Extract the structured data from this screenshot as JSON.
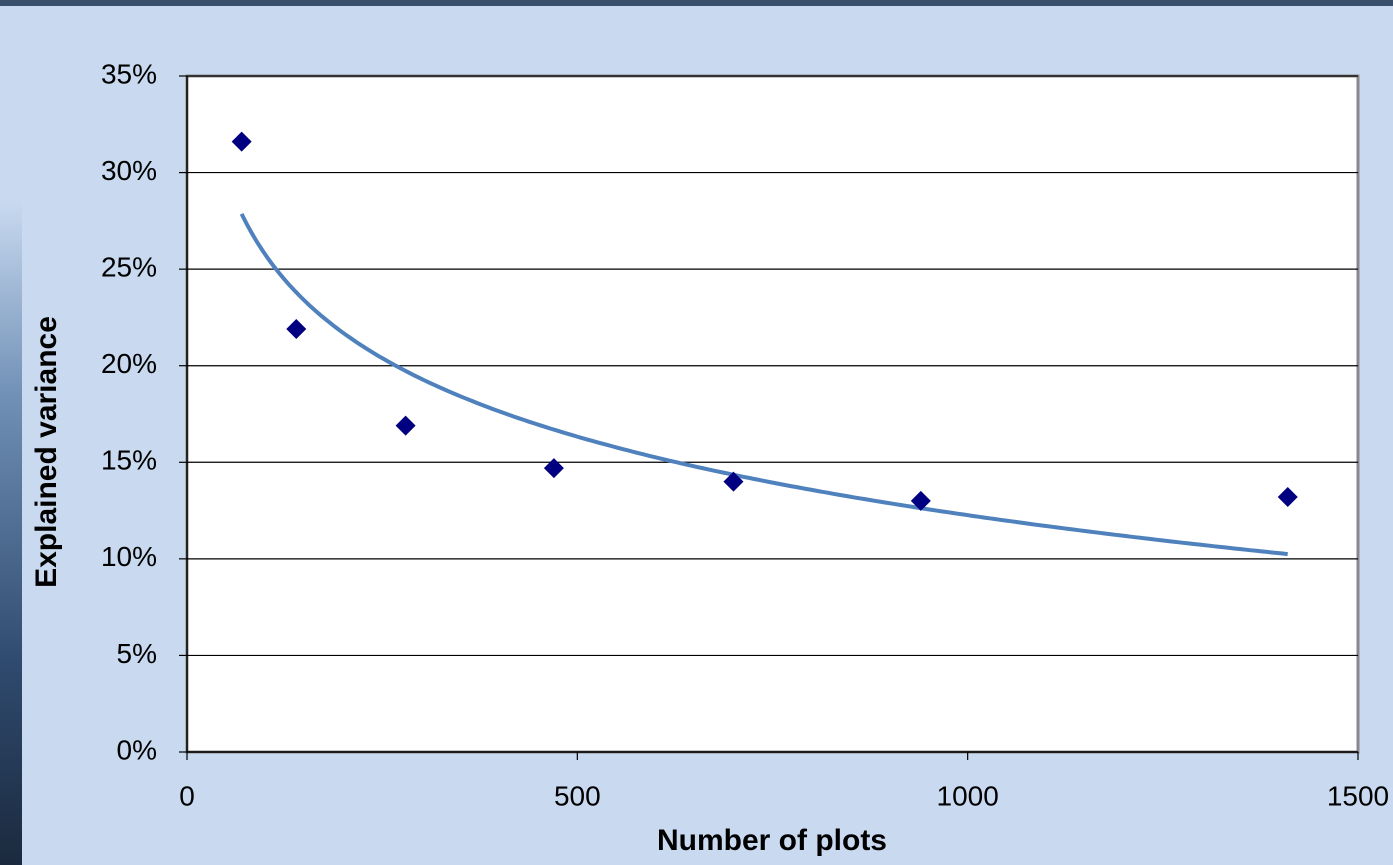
{
  "chart_data": {
    "type": "scatter",
    "x_label": "Number of plots",
    "y_label": "Explained variance",
    "series": [
      {
        "color": "#000080",
        "x": [
          70,
          140,
          280,
          470,
          700,
          940,
          1410
        ],
        "values": [
          31.6,
          21.9,
          16.9,
          14.7,
          14.0,
          13.0,
          13.2
        ]
      }
    ],
    "trendline": {
      "type": "logarithmic",
      "color": "#4f81bd"
    },
    "xlim": [
      0,
      1500
    ],
    "xticks": [
      0,
      500,
      1000,
      1500
    ],
    "ylim": [
      0,
      35
    ],
    "yticks": [
      {
        "value": 0,
        "label": "0%"
      },
      {
        "value": 5,
        "label": "5%"
      },
      {
        "value": 10,
        "label": "10%"
      },
      {
        "value": 15,
        "label": "15%"
      },
      {
        "value": 20,
        "label": "20%"
      },
      {
        "value": 25,
        "label": "25%"
      },
      {
        "value": 30,
        "label": "30%"
      },
      {
        "value": 35,
        "label": "35%"
      }
    ],
    "grid": true
  }
}
